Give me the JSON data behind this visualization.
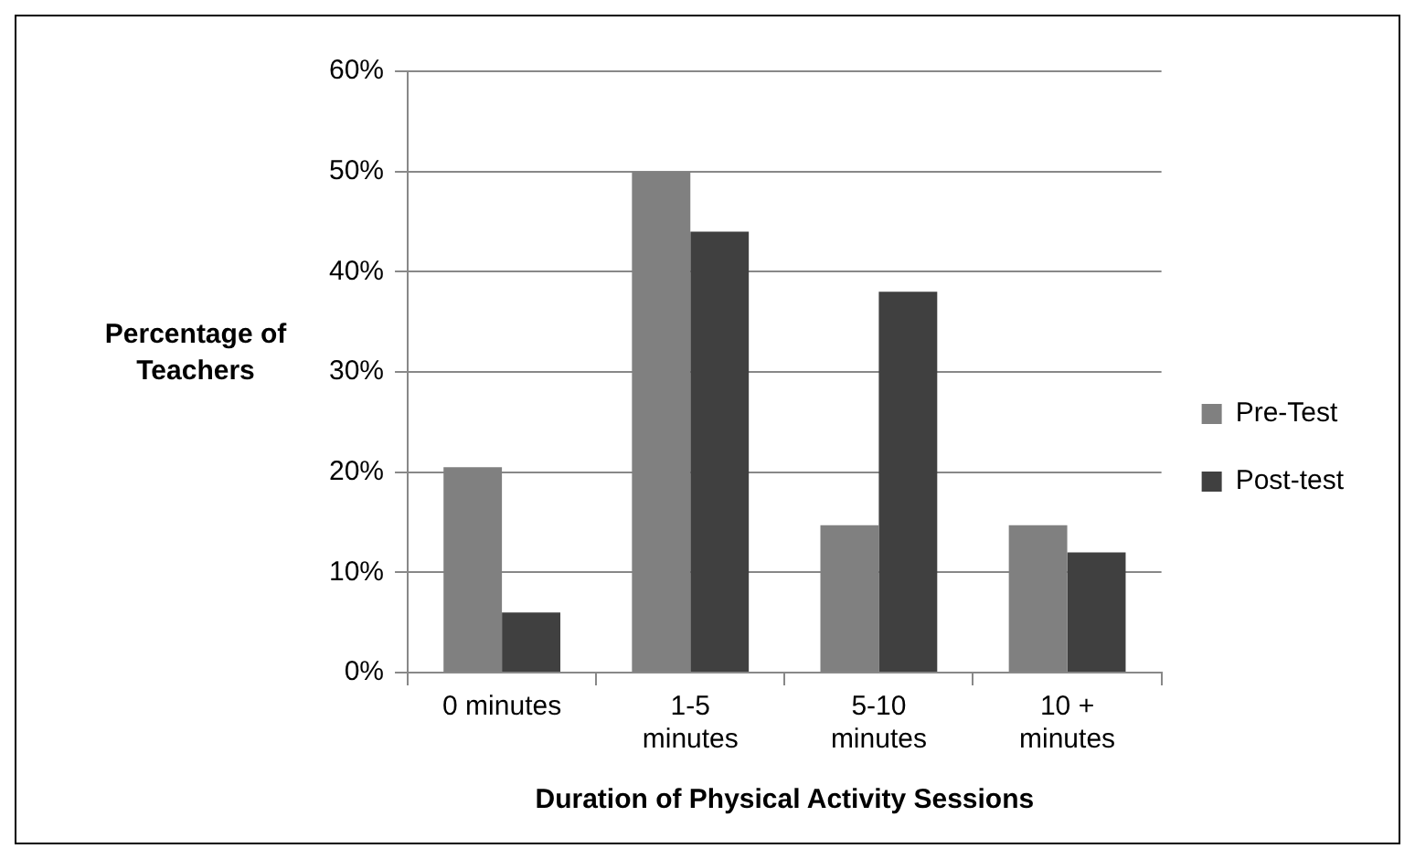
{
  "chart_data": {
    "type": "bar",
    "xlabel": "Duration of Physical Activity Sessions",
    "ylabel": "Percentage of Teachers",
    "categories": [
      "0 minutes",
      "1-5 minutes",
      "5-10 minutes",
      "10 + minutes"
    ],
    "series": [
      {
        "name": "Pre-Test",
        "color": "#808080",
        "values": [
          20.5,
          50,
          14.7,
          14.7
        ]
      },
      {
        "name": "Post-test",
        "color": "#404040",
        "values": [
          6,
          44,
          38,
          12
        ]
      }
    ],
    "ylim": [
      0,
      60
    ],
    "yticks": [
      {
        "value": 0,
        "label": "0%"
      },
      {
        "value": 10,
        "label": "10%"
      },
      {
        "value": 20,
        "label": "20%"
      },
      {
        "value": 30,
        "label": "30%"
      },
      {
        "value": 40,
        "label": "40%"
      },
      {
        "value": 50,
        "label": "50%"
      },
      {
        "value": 60,
        "label": "60%"
      }
    ],
    "grid": "y",
    "legend": "right"
  }
}
